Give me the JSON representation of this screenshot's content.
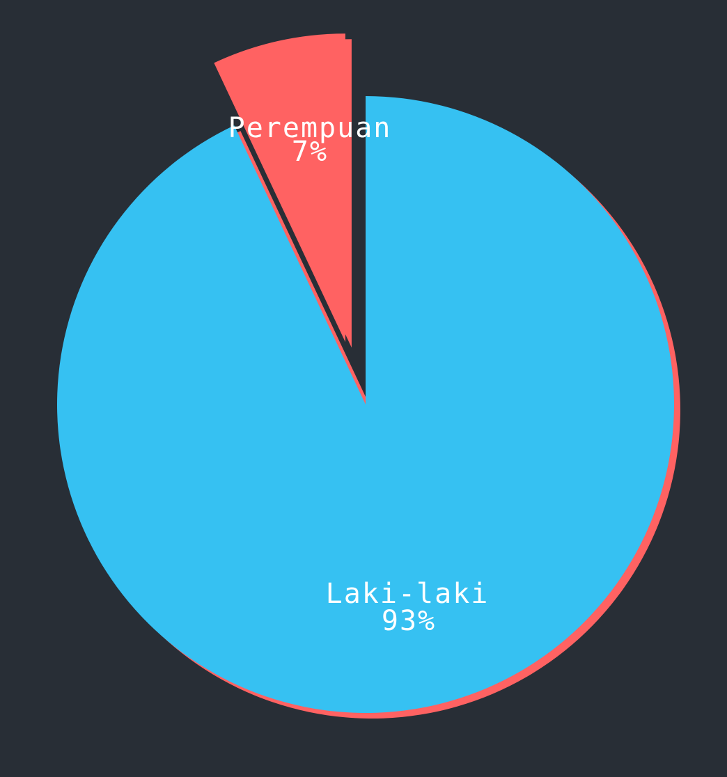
{
  "chart_data": {
    "type": "pie",
    "title": "",
    "slices": [
      {
        "label": "Laki-laki",
        "value": 93,
        "percent_label": "93%",
        "color": "#36c1f2"
      },
      {
        "label": "Perempuan",
        "value": 7,
        "percent_label": "7%",
        "color": "#ff6262"
      }
    ],
    "background_color": "#282e36",
    "shadow_color": "#ff6262",
    "exploded_slice": "Perempuan",
    "start_angle_direction": "clockwise-from-top"
  }
}
